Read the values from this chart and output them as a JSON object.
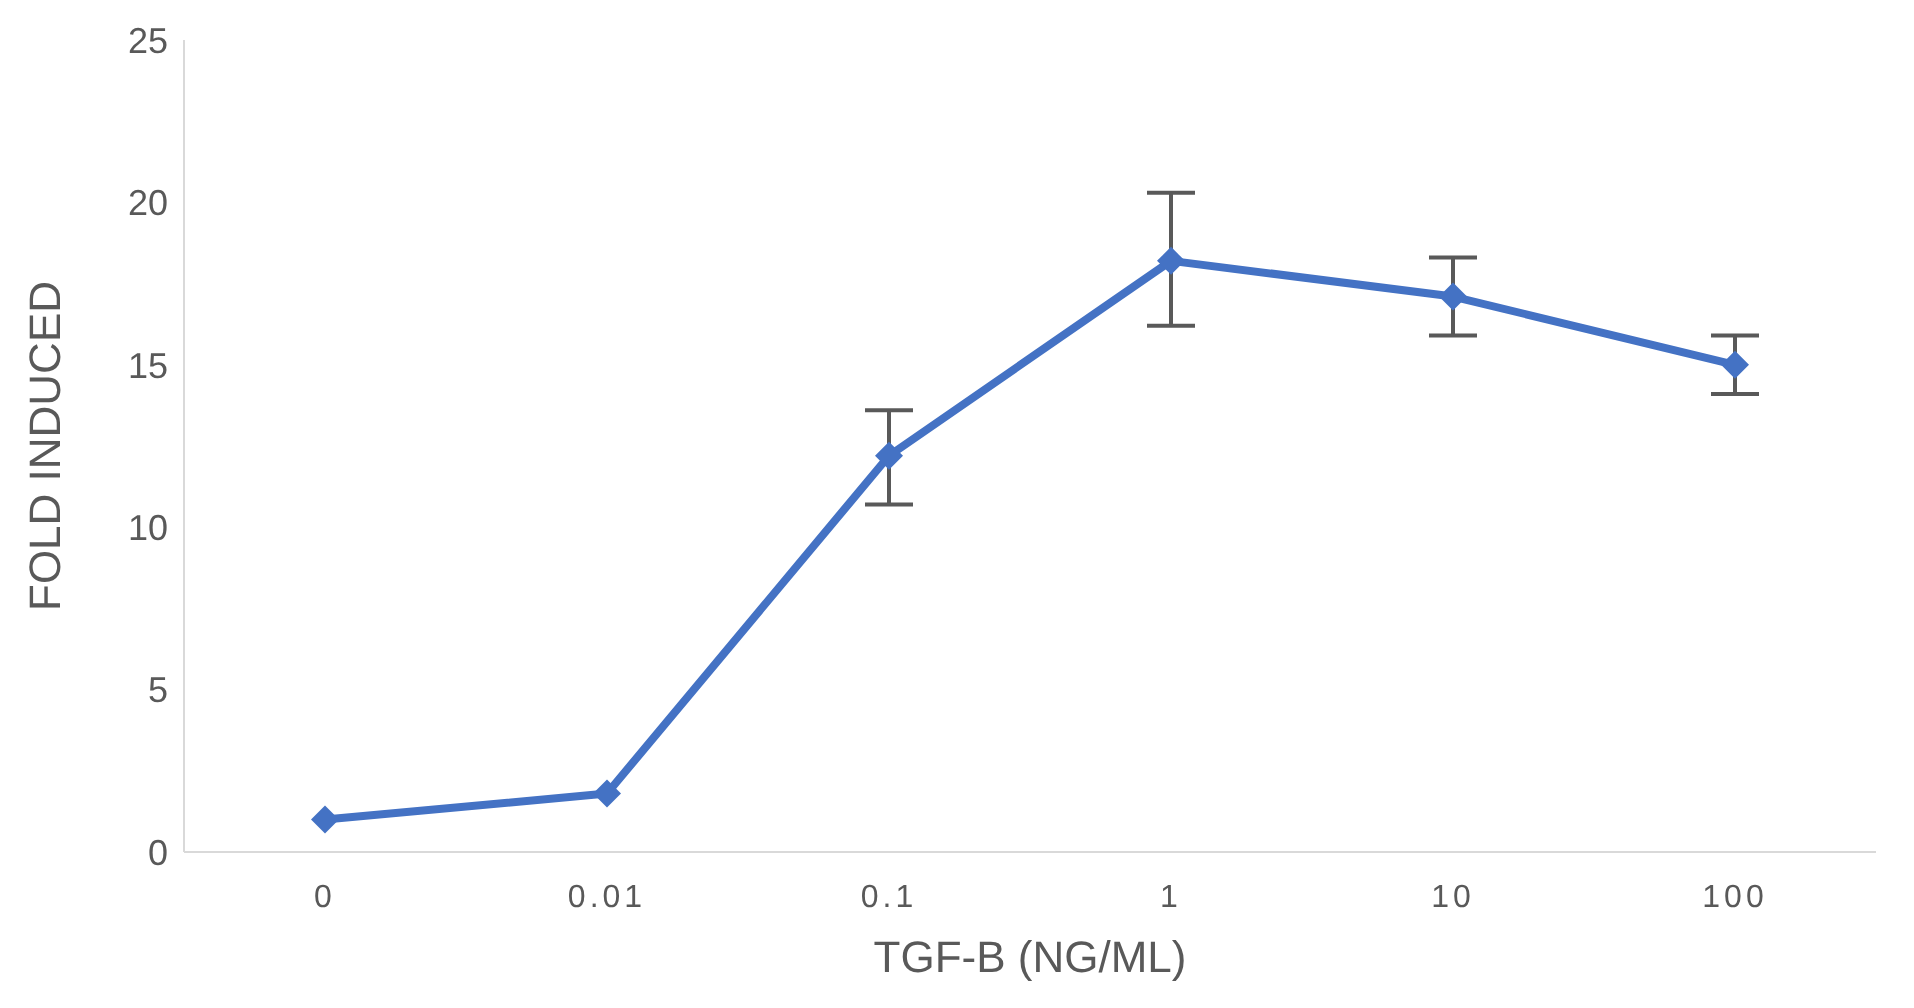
{
  "chart_data": {
    "type": "line",
    "xlabel": "TGF-B (NG/ML)",
    "ylabel": "FOLD INDUCED",
    "categories": [
      "0",
      "0.01",
      "0.1",
      "1",
      "10",
      "100"
    ],
    "series": [
      {
        "color": "#4472c4",
        "values": [
          1.0,
          1.8,
          12.2,
          18.2,
          17.1,
          15.0
        ],
        "errors": [
          null,
          null,
          [
            10.7,
            13.6
          ],
          [
            16.2,
            20.3
          ],
          [
            15.9,
            18.3
          ],
          [
            14.1,
            15.9
          ]
        ]
      }
    ],
    "ylim": [
      0,
      25
    ],
    "yticks": [
      0,
      5,
      10,
      15,
      20,
      25
    ],
    "grid": false,
    "marker": "diamond",
    "line_style": "solid"
  }
}
